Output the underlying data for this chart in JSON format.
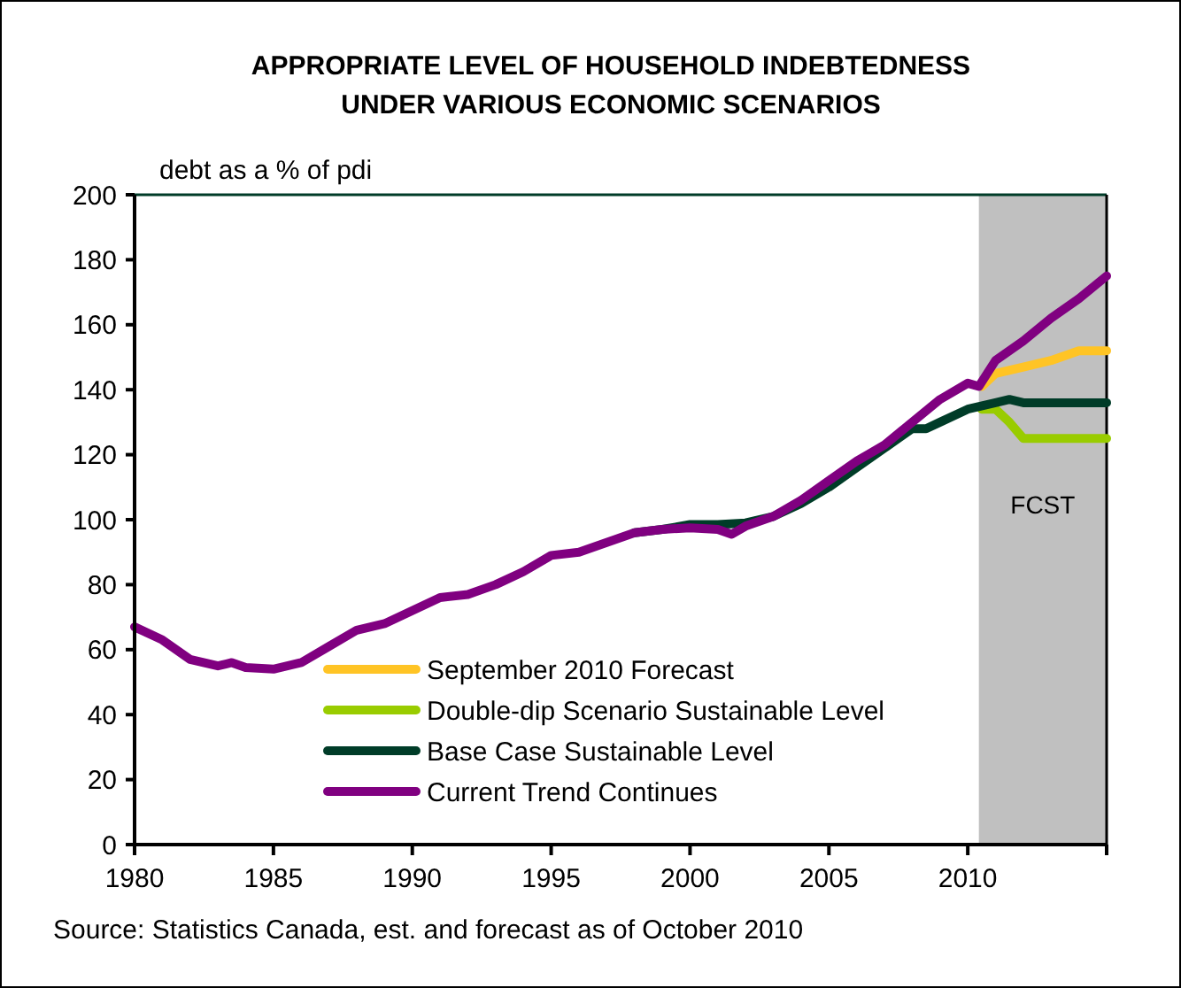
{
  "chart_data": {
    "type": "line",
    "title": "APPROPRIATE LEVEL OF HOUSEHOLD INDEBTEDNESS\nUNDER VARIOUS ECONOMIC SCENARIOS",
    "ylabel": "debt as a % of pdi",
    "annotations": [
      "Source: Statistics Canada, est. and forecast as of October 2010"
    ],
    "xlim": [
      1980,
      2015
    ],
    "xticks": [
      1980,
      1985,
      1990,
      1995,
      2000,
      2005,
      2010,
      {
        "value": 2015,
        "label": null
      }
    ],
    "ylim": [
      0,
      200
    ],
    "yticks": [
      0,
      20,
      40,
      60,
      80,
      100,
      120,
      140,
      160,
      180,
      200
    ],
    "grid": false,
    "legend": "bottom",
    "line_style": "solid",
    "marker": "none",
    "bands": [
      {
        "axis": "x",
        "from": 2010.4,
        "to": 2015,
        "label": "FCST",
        "color": "#c0c0c0"
      }
    ],
    "series": [
      {
        "name": "September 2010 Forecast",
        "color": "#ffc425",
        "x": [
          2010.5,
          2011,
          2012,
          2013,
          2014,
          2015
        ],
        "values": [
          141,
          145,
          147,
          149,
          152,
          152
        ]
      },
      {
        "name": "Double-dip Scenario Sustainable Level",
        "color": "#99cc00",
        "x": [
          2010.5,
          2011,
          2011.5,
          2012,
          2013,
          2015
        ],
        "values": [
          134,
          134,
          130,
          125,
          125,
          125
        ]
      },
      {
        "name": "Base Case Sustainable Level",
        "color": "#003c28",
        "x": [
          1998,
          1999,
          2000,
          2001,
          2002,
          2003,
          2004,
          2005,
          2006,
          2007,
          2007.5,
          2008,
          2008.5,
          2009,
          2010,
          2011,
          2011.5,
          2012,
          2013,
          2015
        ],
        "values": [
          96,
          97,
          98.5,
          98.5,
          99,
          101,
          105,
          110,
          116,
          122,
          125,
          128,
          128,
          130,
          134,
          136,
          137,
          136,
          136,
          136
        ]
      },
      {
        "name": "Current Trend Continues",
        "color": "#800080",
        "x": [
          1980,
          1981,
          1982,
          1983,
          1983.5,
          1984,
          1985,
          1986,
          1987,
          1988,
          1989,
          1990,
          1991,
          1992,
          1993,
          1994,
          1995,
          1996,
          1997,
          1998,
          1999,
          2000,
          2001,
          2001.5,
          2002,
          2003,
          2004,
          2005,
          2006,
          2007,
          2008,
          2009,
          2010,
          2010.4,
          2011,
          2012,
          2013,
          2014,
          2015
        ],
        "values": [
          67,
          63,
          57,
          55,
          56,
          54.5,
          54,
          56,
          61,
          66,
          68,
          72,
          76,
          77,
          80,
          84,
          89,
          90,
          93,
          96,
          97,
          97.5,
          97,
          95.5,
          98,
          101,
          106,
          112,
          118,
          123,
          130,
          137,
          142,
          141,
          149,
          155,
          162,
          168,
          175
        ]
      }
    ]
  }
}
